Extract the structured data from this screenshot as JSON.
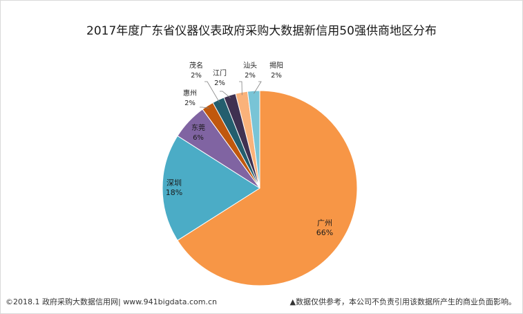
{
  "chart_data": {
    "type": "pie",
    "title": "2017年度广东省仪器仪表政府采购大数据新信用50强供商地区分布",
    "slices": [
      {
        "name": "广州",
        "value": 66,
        "label": "66%",
        "color": "#F79646"
      },
      {
        "name": "深圳",
        "value": 18,
        "label": "18%",
        "color": "#4BACC6"
      },
      {
        "name": "东莞",
        "value": 6,
        "label": "6%",
        "color": "#8064A2"
      },
      {
        "name": "惠州",
        "value": 2,
        "label": "2%",
        "color": "#C0580D"
      },
      {
        "name": "茂名",
        "value": 2,
        "label": "2%",
        "color": "#245E6E"
      },
      {
        "name": "江门",
        "value": 2,
        "label": "2%",
        "color": "#3F3151"
      },
      {
        "name": "汕头",
        "value": 2,
        "label": "2%",
        "color": "#FAB27A"
      },
      {
        "name": "揭阳",
        "value": 2,
        "label": "2%",
        "color": "#79C4D6"
      }
    ]
  },
  "footer": {
    "left": "©2018.1 政府采购大数据信用网| www.941bigdata.com.cn",
    "right": "▲数据仅供参考，本公司不负责引用该数据所产生的商业负面影响。"
  }
}
